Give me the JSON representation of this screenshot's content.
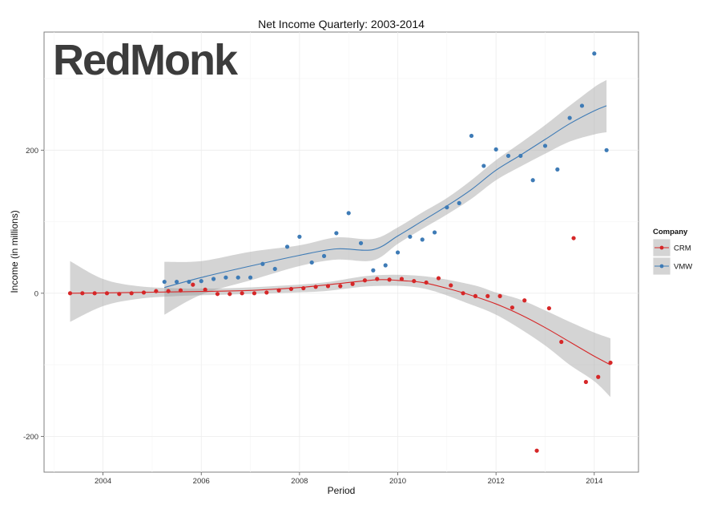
{
  "chart_data": {
    "type": "scatter",
    "title": "Net Income Quarterly: 2003-2014",
    "watermark": "RedMonk",
    "xlabel": "Period",
    "ylabel": "Income (in millions)",
    "xlim": [
      2002.8,
      2014.9
    ],
    "ylim": [
      -250,
      365
    ],
    "x_ticks": [
      2004,
      2006,
      2008,
      2010,
      2012,
      2014
    ],
    "y_ticks": [
      -200,
      0,
      200
    ],
    "grid": true,
    "legend": {
      "title": "Company",
      "position": "right",
      "entries": [
        {
          "label": "CRM",
          "color": "#d62728"
        },
        {
          "label": "VMW",
          "color": "#3e7bb6"
        }
      ]
    },
    "series": [
      {
        "name": "CRM",
        "color": "#d62728",
        "points": [
          [
            2003.33,
            0
          ],
          [
            2003.58,
            0
          ],
          [
            2003.83,
            0
          ],
          [
            2004.08,
            0
          ],
          [
            2004.33,
            -1
          ],
          [
            2004.58,
            0
          ],
          [
            2004.83,
            1
          ],
          [
            2005.08,
            3
          ],
          [
            2005.33,
            3
          ],
          [
            2005.58,
            4
          ],
          [
            2005.83,
            12
          ],
          [
            2006.08,
            5
          ],
          [
            2006.33,
            -1
          ],
          [
            2006.58,
            -1
          ],
          [
            2006.83,
            0
          ],
          [
            2007.08,
            0
          ],
          [
            2007.33,
            1
          ],
          [
            2007.58,
            4
          ],
          [
            2007.83,
            6
          ],
          [
            2008.08,
            7
          ],
          [
            2008.33,
            9
          ],
          [
            2008.58,
            10
          ],
          [
            2008.83,
            10
          ],
          [
            2009.08,
            13
          ],
          [
            2009.33,
            18
          ],
          [
            2009.58,
            20
          ],
          [
            2009.83,
            19
          ],
          [
            2010.08,
            20
          ],
          [
            2010.33,
            17
          ],
          [
            2010.58,
            15
          ],
          [
            2010.83,
            21
          ],
          [
            2011.08,
            11
          ],
          [
            2011.33,
            0
          ],
          [
            2011.58,
            -4
          ],
          [
            2011.83,
            -4
          ],
          [
            2012.08,
            -4
          ],
          [
            2012.33,
            -20
          ],
          [
            2012.58,
            -10
          ],
          [
            2012.83,
            -220
          ],
          [
            2013.08,
            -21
          ],
          [
            2013.33,
            -68
          ],
          [
            2013.58,
            77
          ],
          [
            2013.83,
            -124
          ],
          [
            2014.08,
            -117
          ],
          [
            2014.33,
            -97
          ]
        ],
        "smooth": [
          [
            2003.33,
            0
          ],
          [
            2004,
            0.5
          ],
          [
            2005,
            1.5
          ],
          [
            2006,
            2.5
          ],
          [
            2007,
            4
          ],
          [
            2008,
            8
          ],
          [
            2009,
            15
          ],
          [
            2009.6,
            19
          ],
          [
            2010,
            18
          ],
          [
            2010.5,
            15
          ],
          [
            2011,
            7
          ],
          [
            2011.5,
            -3
          ],
          [
            2012,
            -15
          ],
          [
            2012.5,
            -30
          ],
          [
            2013,
            -48
          ],
          [
            2013.5,
            -68
          ],
          [
            2014,
            -88
          ],
          [
            2014.33,
            -100
          ]
        ],
        "band": [
          [
            2003.33,
            45,
            -40
          ],
          [
            2004,
            20,
            -18
          ],
          [
            2004.7,
            10,
            -8
          ],
          [
            2005.5,
            7,
            -4
          ],
          [
            2006.5,
            7,
            -2
          ],
          [
            2007.5,
            10,
            0
          ],
          [
            2008.5,
            15,
            3
          ],
          [
            2009.5,
            25,
            10
          ],
          [
            2010.5,
            24,
            7
          ],
          [
            2011.5,
            12,
            -16
          ],
          [
            2012,
            1,
            -30
          ],
          [
            2012.5,
            -9,
            -50
          ],
          [
            2013,
            -24,
            -73
          ],
          [
            2013.5,
            -40,
            -100
          ],
          [
            2014,
            -55,
            -123
          ],
          [
            2014.33,
            -63,
            -145
          ]
        ]
      },
      {
        "name": "VMW",
        "color": "#3e7bb6",
        "points": [
          [
            2005.25,
            16
          ],
          [
            2005.5,
            16
          ],
          [
            2005.75,
            16
          ],
          [
            2006,
            17
          ],
          [
            2006.25,
            20
          ],
          [
            2006.5,
            22
          ],
          [
            2006.75,
            22
          ],
          [
            2007,
            22
          ],
          [
            2007.25,
            41
          ],
          [
            2007.5,
            34
          ],
          [
            2007.75,
            65
          ],
          [
            2008,
            79
          ],
          [
            2008.25,
            43
          ],
          [
            2008.5,
            52
          ],
          [
            2008.75,
            84
          ],
          [
            2009,
            112
          ],
          [
            2009.25,
            70
          ],
          [
            2009.5,
            32
          ],
          [
            2009.75,
            39
          ],
          [
            2010,
            57
          ],
          [
            2010.25,
            79
          ],
          [
            2010.5,
            75
          ],
          [
            2010.75,
            85
          ],
          [
            2011,
            120
          ],
          [
            2011.25,
            126
          ],
          [
            2011.5,
            220
          ],
          [
            2011.75,
            178
          ],
          [
            2012,
            201
          ],
          [
            2012.25,
            192
          ],
          [
            2012.5,
            192
          ],
          [
            2012.75,
            158
          ],
          [
            2013,
            206
          ],
          [
            2013.25,
            173
          ],
          [
            2013.5,
            245
          ],
          [
            2013.75,
            262
          ],
          [
            2014,
            335
          ],
          [
            2014.25,
            200
          ]
        ],
        "smooth": [
          [
            2005.25,
            8
          ],
          [
            2006,
            22
          ],
          [
            2007,
            38
          ],
          [
            2008,
            53
          ],
          [
            2008.75,
            62
          ],
          [
            2009.5,
            61
          ],
          [
            2010,
            80
          ],
          [
            2010.5,
            101
          ],
          [
            2011,
            122
          ],
          [
            2011.5,
            145
          ],
          [
            2012,
            172
          ],
          [
            2012.5,
            193
          ],
          [
            2013,
            215
          ],
          [
            2013.5,
            237
          ],
          [
            2014,
            255
          ],
          [
            2014.25,
            262
          ]
        ],
        "band": [
          [
            2005.25,
            44,
            -30
          ],
          [
            2006,
            45,
            -2
          ],
          [
            2007,
            58,
            18
          ],
          [
            2008,
            67,
            38
          ],
          [
            2008.75,
            78,
            47
          ],
          [
            2009.5,
            76,
            46
          ],
          [
            2010,
            92,
            69
          ],
          [
            2010.5,
            113,
            90
          ],
          [
            2011,
            133,
            110
          ],
          [
            2011.5,
            158,
            132
          ],
          [
            2012,
            186,
            158
          ],
          [
            2012.5,
            210,
            177
          ],
          [
            2013,
            235,
            195
          ],
          [
            2013.5,
            262,
            212
          ],
          [
            2014,
            288,
            222
          ],
          [
            2014.25,
            298,
            225
          ]
        ]
      }
    ]
  }
}
